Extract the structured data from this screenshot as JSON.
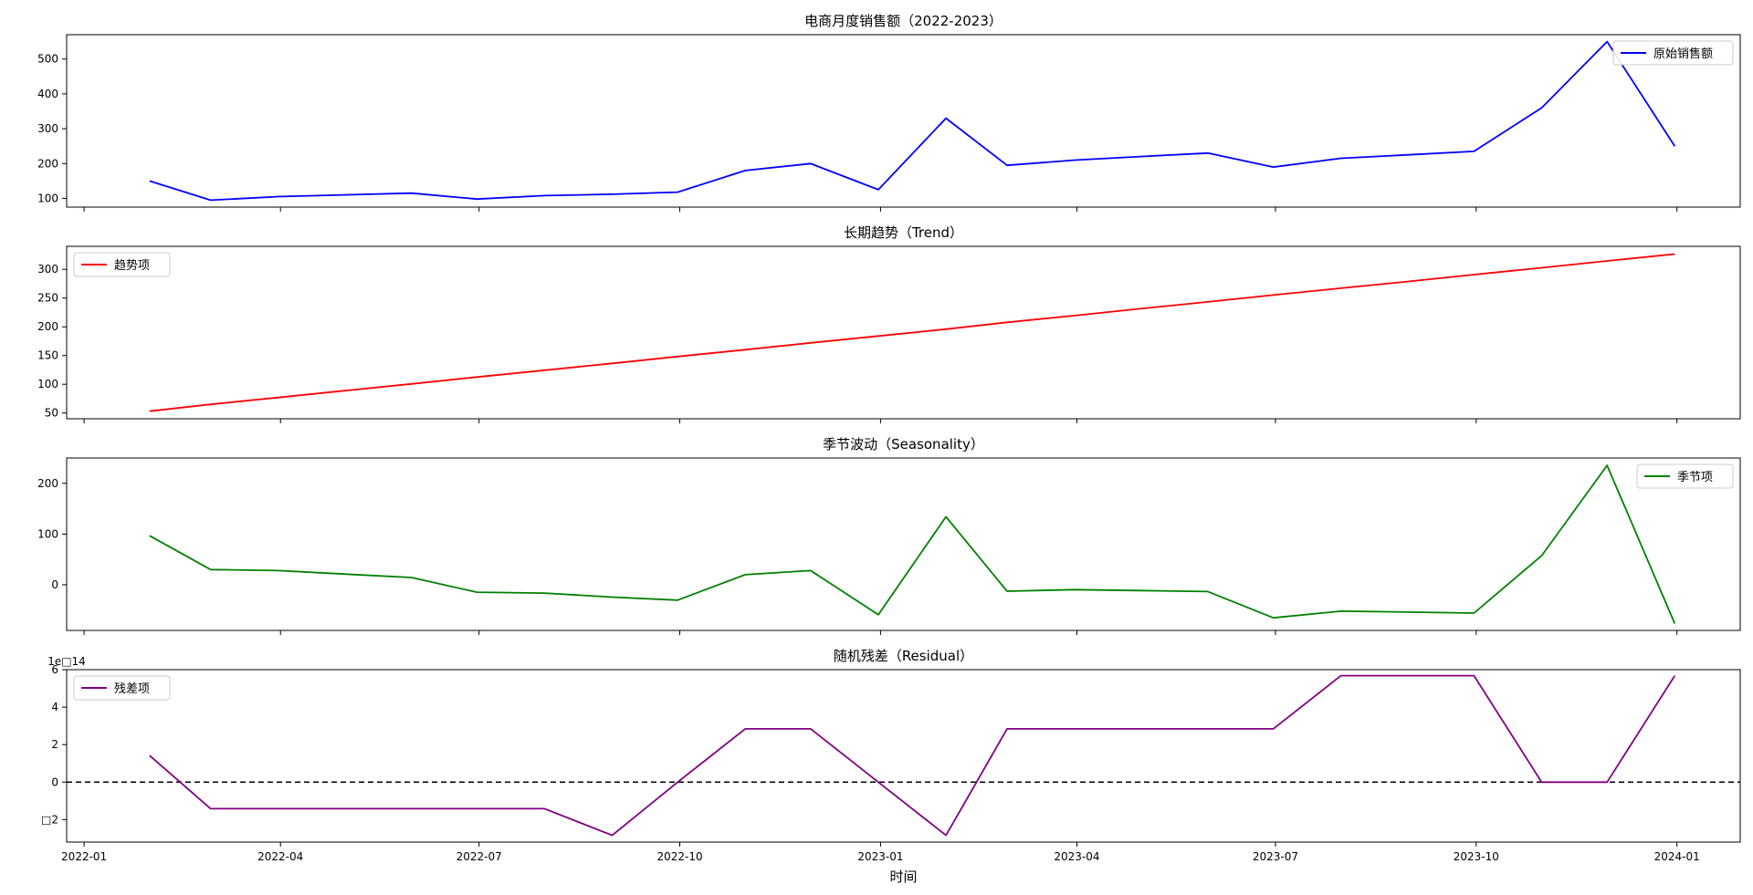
{
  "chart_data": [
    {
      "type": "line",
      "title": "电商月度销售额（2022-2023）",
      "x": [
        "2022-01-31",
        "2022-02-28",
        "2022-03-31",
        "2022-04-30",
        "2022-05-31",
        "2022-06-30",
        "2022-07-31",
        "2022-08-31",
        "2022-09-30",
        "2022-10-31",
        "2022-11-30",
        "2022-12-31",
        "2023-01-31",
        "2023-02-28",
        "2023-03-31",
        "2023-04-30",
        "2023-05-31",
        "2023-06-30",
        "2023-07-31",
        "2023-08-31",
        "2023-09-30",
        "2023-10-31",
        "2023-11-30",
        "2023-12-31"
      ],
      "series": [
        {
          "name": "原始销售额",
          "color": "#0000ff",
          "values": [
            150,
            95,
            105,
            110,
            115,
            98,
            108,
            112,
            118,
            180,
            200,
            125,
            330,
            195,
            210,
            220,
            230,
            190,
            215,
            225,
            235,
            360,
            550,
            250
          ]
        }
      ],
      "ylim": [
        75,
        570
      ],
      "yticks": [
        100,
        200,
        300,
        400,
        500
      ],
      "legend": "top-right",
      "grid": false
    },
    {
      "type": "line",
      "title": "长期趋势（Trend）",
      "x": [
        "2022-01-31",
        "2022-02-28",
        "2022-03-31",
        "2022-04-30",
        "2022-05-31",
        "2022-06-30",
        "2022-07-31",
        "2022-08-31",
        "2022-09-30",
        "2022-10-31",
        "2022-11-30",
        "2022-12-31",
        "2023-01-31",
        "2023-02-28",
        "2023-03-31",
        "2023-04-30",
        "2023-05-31",
        "2023-06-30",
        "2023-07-31",
        "2023-08-31",
        "2023-09-30",
        "2023-10-31",
        "2023-11-30",
        "2023-12-31"
      ],
      "series": [
        {
          "name": "趋势项",
          "color": "#ff0000",
          "values": [
            53.2,
            65.1,
            77.0,
            88.8,
            100.7,
            112.6,
            124.5,
            136.4,
            148.2,
            160.1,
            172.0,
            183.9,
            195.8,
            207.7,
            219.5,
            231.4,
            243.3,
            255.2,
            267.1,
            278.9,
            290.8,
            302.7,
            314.6,
            326.5
          ]
        }
      ],
      "ylim": [
        40,
        340
      ],
      "yticks": [
        50,
        100,
        150,
        200,
        250,
        300
      ],
      "legend": "top-left",
      "grid": false
    },
    {
      "type": "line",
      "title": "季节波动（Seasonality）",
      "x": [
        "2022-01-31",
        "2022-02-28",
        "2022-03-31",
        "2022-04-30",
        "2022-05-31",
        "2022-06-30",
        "2022-07-31",
        "2022-08-31",
        "2022-09-30",
        "2022-10-31",
        "2022-11-30",
        "2022-12-31",
        "2023-01-31",
        "2023-02-28",
        "2023-03-31",
        "2023-04-30",
        "2023-05-31",
        "2023-06-30",
        "2023-07-31",
        "2023-08-31",
        "2023-09-30",
        "2023-10-31",
        "2023-11-30",
        "2023-12-31"
      ],
      "series": [
        {
          "name": "季节项",
          "color": "#008000",
          "values": [
            96.8,
            29.9,
            28.0,
            21.2,
            14.3,
            -14.6,
            -16.5,
            -24.4,
            -30.2,
            19.9,
            28.0,
            -58.9,
            134.2,
            -12.7,
            -9.5,
            -11.4,
            -13.3,
            -65.2,
            -52.1,
            -53.9,
            -55.8,
            57.3,
            235.4,
            -76.5
          ]
        }
      ],
      "ylim": [
        -90,
        250
      ],
      "yticks": [
        0,
        100,
        200
      ],
      "legend": "top-right",
      "grid": false
    },
    {
      "type": "line",
      "title": "随机残差（Residual）",
      "x": [
        "2022-01-31",
        "2022-02-28",
        "2022-03-31",
        "2022-04-30",
        "2022-05-31",
        "2022-06-30",
        "2022-07-31",
        "2022-08-31",
        "2022-09-30",
        "2022-10-31",
        "2022-11-30",
        "2022-12-31",
        "2023-01-31",
        "2023-02-28",
        "2023-03-31",
        "2023-04-30",
        "2023-05-31",
        "2023-06-30",
        "2023-07-31",
        "2023-08-31",
        "2023-09-30",
        "2023-10-31",
        "2023-11-30",
        "2023-12-31"
      ],
      "series": [
        {
          "name": "残差项",
          "color": "#800080",
          "values": [
            1.42,
            -1.42,
            -1.42,
            -1.42,
            -1.42,
            -1.42,
            -1.42,
            -2.84,
            0,
            2.84,
            2.84,
            0,
            -2.84,
            2.84,
            2.84,
            2.84,
            2.84,
            2.84,
            5.68,
            5.68,
            5.68,
            0,
            0,
            5.68
          ]
        }
      ],
      "ylim": [
        -3.2,
        6.0
      ],
      "yticks": [
        -2,
        0,
        2,
        4,
        6
      ],
      "ytick_labels": [
        "□2",
        "0",
        "2",
        "4",
        "6"
      ],
      "offset_text": "1e□14",
      "reference_line": {
        "y": 0,
        "style": "dashed",
        "color": "#000000"
      },
      "legend": "top-left",
      "grid": false
    }
  ],
  "shared_x": {
    "xlabel": "时间",
    "xlim": [
      "2021-12-24",
      "2024-01-30"
    ],
    "xticks": [
      "2022-01-01",
      "2022-04-01",
      "2022-07-01",
      "2022-10-01",
      "2023-01-01",
      "2023-04-01",
      "2023-07-01",
      "2023-10-01",
      "2024-01-01"
    ],
    "xtick_labels": [
      "2022-01",
      "2022-04",
      "2022-07",
      "2022-10",
      "2023-01",
      "2023-04",
      "2023-07",
      "2023-10",
      "2024-01"
    ]
  }
}
